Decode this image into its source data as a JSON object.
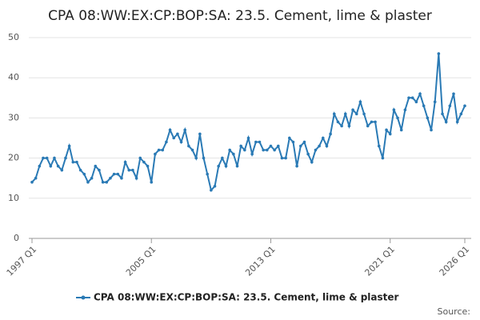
{
  "chart_data": {
    "type": "line",
    "title": "CPA 08:WW:EX:CP:BOP:SA: 23.5. Cement, lime & plaster",
    "source": "Source:",
    "categories": [
      "1997 Q1",
      null,
      null,
      null,
      null,
      null,
      null,
      null,
      null,
      null,
      null,
      null,
      null,
      null,
      null,
      null,
      null,
      null,
      null,
      null,
      null,
      null,
      null,
      null,
      null,
      null,
      null,
      null,
      null,
      null,
      null,
      null,
      "2005 Q1",
      null,
      null,
      null,
      null,
      null,
      null,
      null,
      null,
      null,
      null,
      null,
      null,
      null,
      null,
      null,
      null,
      null,
      null,
      null,
      null,
      null,
      null,
      null,
      null,
      null,
      null,
      null,
      null,
      null,
      null,
      null,
      "2013 Q1",
      null,
      null,
      null,
      null,
      null,
      null,
      null,
      null,
      null,
      null,
      null,
      null,
      null,
      null,
      null,
      null,
      null,
      null,
      null,
      null,
      null,
      null,
      null,
      null,
      null,
      null,
      null,
      null,
      null,
      null,
      null,
      "2021 Q1",
      null,
      null,
      null,
      null,
      null,
      null,
      null,
      null,
      null,
      null,
      null,
      null,
      null,
      null,
      null,
      null,
      null,
      null,
      null,
      "2026 Q1"
    ],
    "series": [
      {
        "name": "CPA 08:WW:EX:CP:BOP:SA: 23.5. Cement, lime & plaster",
        "color": "#2a7ab5",
        "values": [
          14,
          15,
          18,
          20,
          20,
          18,
          20,
          18,
          17,
          20,
          23,
          19,
          19,
          17,
          16,
          14,
          15,
          18,
          17,
          14,
          14,
          15,
          16,
          16,
          15,
          19,
          17,
          17,
          15,
          20,
          19,
          18,
          14,
          21,
          22,
          22,
          24,
          27,
          25,
          26,
          24,
          27,
          23,
          22,
          20,
          26,
          20,
          16,
          12,
          13,
          18,
          20,
          18,
          22,
          21,
          18,
          23,
          22,
          25,
          21,
          24,
          24,
          22,
          22,
          23,
          22,
          23,
          20,
          20,
          25,
          24,
          18,
          23,
          24,
          21,
          19,
          22,
          23,
          25,
          23,
          26,
          31,
          29,
          28,
          31,
          28,
          32,
          31,
          34,
          31,
          28,
          29,
          29,
          23,
          20,
          27,
          26,
          32,
          30,
          27,
          32,
          35,
          35,
          34,
          36,
          33,
          30,
          27,
          34,
          46,
          31,
          29,
          33,
          36,
          29,
          31,
          33
        ]
      }
    ],
    "ylim": [
      0,
      50
    ],
    "yticks": [
      0,
      10,
      20,
      30,
      40,
      50
    ],
    "grid": true
  }
}
